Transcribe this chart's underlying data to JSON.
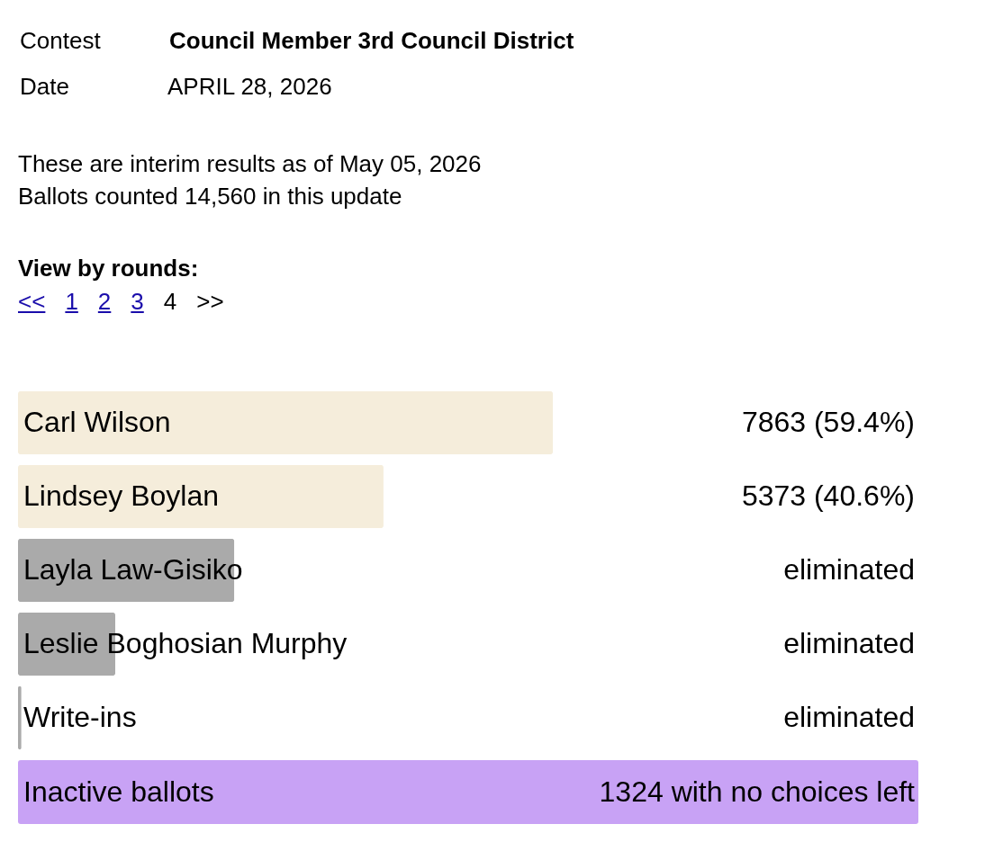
{
  "chart_data": {
    "type": "bar",
    "orientation": "horizontal",
    "title": "Council Member 3rd Council District",
    "annotations": [
      "Contest",
      "Date",
      "APRIL 28, 2026",
      "These are interim results as of May 05, 2026",
      "Ballots counted 14,560 in this update",
      "View by rounds:",
      "<<",
      "1",
      "2",
      "3",
      "4",
      ">>",
      "Inactive ballots",
      "1324 with no choices left"
    ],
    "categories": [
      "Carl Wilson",
      "Lindsey Boylan",
      "Layla Law-Gisiko",
      "Leslie Boghosian Murphy",
      "Write-ins"
    ],
    "values": [
      7863,
      5373,
      3180,
      1430,
      50
    ],
    "xlim": [
      0,
      13236
    ],
    "colors": [
      "#f5eddb",
      "#f5eddb",
      "#aaaaaa",
      "#aaaaaa",
      "#aaaaaa"
    ],
    "value_labels": [
      "7863 (59.4%)",
      "5373 (40.6%)",
      "eliminated",
      "eliminated",
      "eliminated"
    ]
  }
}
